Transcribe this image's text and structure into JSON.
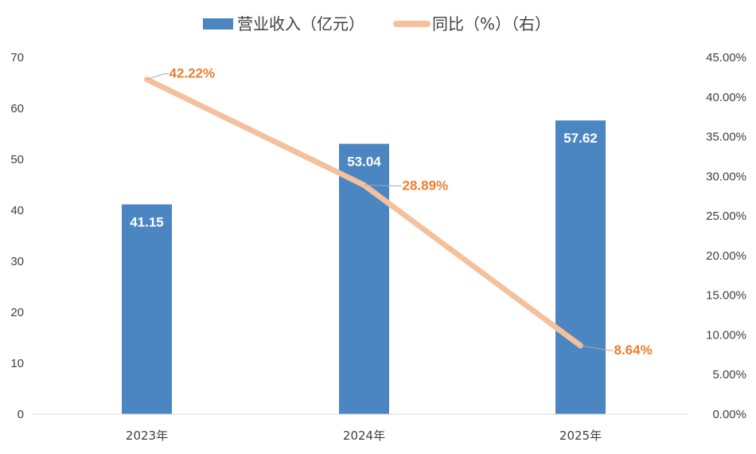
{
  "chart_data": {
    "type": "bar",
    "categories": [
      "2023年",
      "2024年",
      "2025年"
    ],
    "series": [
      {
        "name": "营业收入（亿元）",
        "type": "bar",
        "axis": "left",
        "values": [
          41.15,
          53.04,
          57.62
        ],
        "labels": [
          "41.15",
          "53.04",
          "57.62"
        ],
        "color": "#4B86C2"
      },
      {
        "name": "同比（%）（右）",
        "type": "line",
        "axis": "right",
        "values": [
          42.22,
          28.89,
          8.64
        ],
        "labels": [
          "42.22%",
          "28.89%",
          "8.64%"
        ],
        "color": "#F5C09C"
      }
    ],
    "y_left": {
      "min": 0,
      "max": 70,
      "step": 10,
      "ticks": [
        "0",
        "10",
        "20",
        "30",
        "40",
        "50",
        "60",
        "70"
      ]
    },
    "y_right": {
      "min": 0,
      "max": 45,
      "step": 5,
      "ticks": [
        "0.00%",
        "5.00%",
        "10.00%",
        "15.00%",
        "20.00%",
        "25.00%",
        "30.00%",
        "35.00%",
        "40.00%",
        "45.00%"
      ]
    },
    "label_color": "#ED7D31",
    "legend_position": "top",
    "grid": false
  }
}
